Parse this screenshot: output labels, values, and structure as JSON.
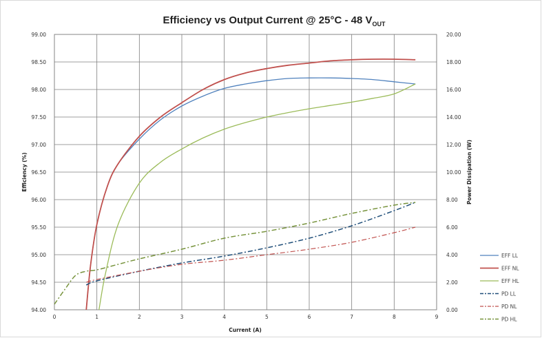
{
  "chart_data": {
    "type": "line",
    "title": "Efficiency vs Output Current @ 25°C - 48 V",
    "title_subscript": "OUT",
    "xlabel": "Current (A)",
    "ylabel": "Efficiency (%)",
    "y2label": "Power Dissipation (W)",
    "xlim": [
      0,
      9
    ],
    "ylim": [
      94.0,
      99.0
    ],
    "y2lim": [
      0.0,
      20.0
    ],
    "x_ticks": [
      "0",
      "1",
      "2",
      "3",
      "4",
      "5",
      "6",
      "7",
      "8",
      "9"
    ],
    "y_ticks": [
      "94.00",
      "94.50",
      "95.00",
      "95.50",
      "96.00",
      "96.50",
      "97.00",
      "97.50",
      "98.00",
      "98.50",
      "99.00"
    ],
    "y2_ticks": [
      "0.00",
      "2.00",
      "4.00",
      "6.00",
      "8.00",
      "10.00",
      "12.00",
      "14.00",
      "16.00",
      "18.00",
      "20.00"
    ],
    "grid": true,
    "legend_position": "bottom-right",
    "series": [
      {
        "name": "EFF LL",
        "axis": "left",
        "color": "#4f81bd",
        "dash": "solid",
        "width": 1.3,
        "x": [
          0.75,
          0.85,
          1.0,
          1.25,
          1.5,
          2.0,
          2.5,
          3.0,
          3.5,
          4.0,
          4.5,
          5.0,
          5.5,
          6.0,
          6.5,
          7.0,
          7.5,
          8.0,
          8.5
        ],
        "y": [
          94.0,
          94.8,
          95.55,
          96.25,
          96.65,
          97.1,
          97.45,
          97.7,
          97.88,
          98.02,
          98.1,
          98.16,
          98.2,
          98.21,
          98.21,
          98.2,
          98.18,
          98.14,
          98.1
        ]
      },
      {
        "name": "EFF NL",
        "axis": "left",
        "color": "#c0504d",
        "dash": "solid",
        "width": 1.8,
        "x": [
          0.75,
          0.85,
          1.0,
          1.25,
          1.5,
          2.0,
          2.5,
          3.0,
          3.5,
          4.0,
          4.5,
          5.0,
          5.5,
          6.0,
          6.5,
          7.0,
          7.5,
          8.0,
          8.5
        ],
        "y": [
          94.0,
          94.8,
          95.55,
          96.25,
          96.65,
          97.15,
          97.5,
          97.76,
          98.0,
          98.18,
          98.3,
          98.38,
          98.44,
          98.48,
          98.52,
          98.54,
          98.55,
          98.55,
          98.54
        ]
      },
      {
        "name": "EFF HL",
        "axis": "left",
        "color": "#9bbb59",
        "dash": "solid",
        "width": 1.3,
        "x": [
          1.05,
          1.2,
          1.5,
          2.0,
          2.5,
          3.0,
          3.5,
          4.0,
          4.5,
          5.0,
          5.5,
          6.0,
          6.5,
          7.0,
          7.5,
          8.0,
          8.5
        ],
        "y": [
          94.0,
          94.65,
          95.55,
          96.3,
          96.68,
          96.92,
          97.12,
          97.28,
          97.4,
          97.5,
          97.58,
          97.65,
          97.71,
          97.77,
          97.84,
          97.92,
          98.1
        ]
      },
      {
        "name": "PD LL",
        "axis": "right",
        "color": "#1f4e79",
        "dash": "dashdot",
        "width": 1.5,
        "x": [
          0.75,
          1.0,
          2.0,
          3.0,
          4.0,
          5.0,
          6.0,
          7.0,
          8.0,
          8.5
        ],
        "y": [
          1.8,
          2.1,
          2.8,
          3.4,
          3.9,
          4.5,
          5.2,
          6.1,
          7.2,
          7.8
        ]
      },
      {
        "name": "PD NL",
        "axis": "right",
        "color": "#c0504d",
        "dash": "dashdot",
        "width": 1.2,
        "x": [
          0.75,
          1.0,
          2.0,
          3.0,
          4.0,
          5.0,
          6.0,
          7.0,
          8.0,
          8.5
        ],
        "y": [
          2.0,
          2.2,
          2.8,
          3.3,
          3.6,
          4.0,
          4.4,
          4.9,
          5.6,
          6.0
        ]
      },
      {
        "name": "PD HL",
        "axis": "right",
        "color": "#77933c",
        "dash": "dashdot",
        "width": 1.5,
        "x": [
          0.0,
          0.25,
          0.5,
          0.75,
          1.0,
          1.5,
          2.0,
          3.0,
          4.0,
          5.0,
          6.0,
          7.0,
          8.0,
          8.5
        ],
        "y": [
          0.4,
          1.5,
          2.5,
          2.8,
          2.9,
          3.3,
          3.7,
          4.4,
          5.2,
          5.7,
          6.3,
          7.0,
          7.6,
          7.8
        ]
      }
    ]
  }
}
